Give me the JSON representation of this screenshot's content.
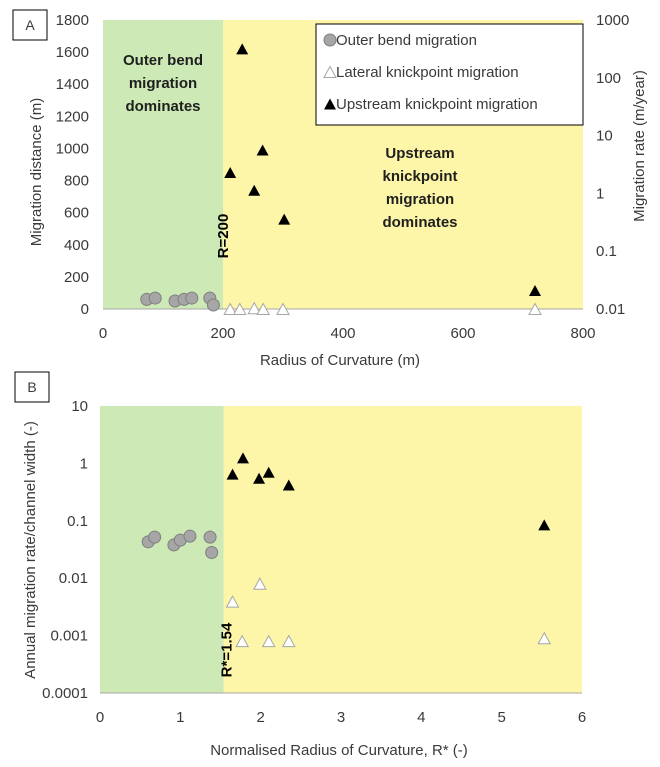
{
  "colors": {
    "outer_zone": "#cde9b6",
    "upstream_zone": "#fdf6a8",
    "outer_marker_fill": "#a6a6a6",
    "outer_marker_stroke": "#7f7f7f",
    "lateral_marker_stroke": "#a6a6a6",
    "upstream_marker": "#000000"
  },
  "chart_data": [
    {
      "panel": "A",
      "type": "scatter",
      "xlabel": "Radius of Curvature (m)",
      "ylabel": "Migration distance (m)",
      "ylabel_right": "Migration rate (m/year)",
      "xlim": [
        0,
        800
      ],
      "ylim": [
        0,
        1800
      ],
      "ylim_right": [
        0.01,
        1000
      ],
      "y_right_scale": "log",
      "x_ticks": [
        "0",
        "200",
        "400",
        "600",
        "800"
      ],
      "y_ticks": [
        "0",
        "200",
        "400",
        "600",
        "800",
        "1000",
        "1200",
        "1400",
        "1600",
        "1800"
      ],
      "y_right_ticks": [
        "0.01",
        "0.1",
        "1",
        "10",
        "100",
        "1000"
      ],
      "zones": [
        {
          "label": "Outer bend migration dominates",
          "lines": [
            "Outer bend",
            "migration",
            "dominates"
          ],
          "x_range": [
            0,
            200
          ],
          "color": "outer_zone"
        },
        {
          "label": "Upstream knickpoint migration dominates",
          "lines": [
            "Upstream",
            "knickpoint",
            "migration",
            "dominates"
          ],
          "x_range": [
            200,
            800
          ],
          "color": "upstream_zone"
        }
      ],
      "threshold_label": "R=200",
      "legend": {
        "position": "top-right",
        "entries": [
          "Outer bend migration",
          "Lateral knickpoint migration",
          "Upstream knickpoint migration"
        ]
      },
      "series": [
        {
          "name": "Outer bend migration",
          "marker": "circle",
          "x": [
            73,
            87,
            120,
            135,
            148,
            178,
            184
          ],
          "y": [
            60,
            68,
            50,
            60,
            68,
            68,
            25
          ]
        },
        {
          "name": "Lateral knickpoint migration",
          "marker": "open-triangle",
          "x": [
            212,
            228,
            252,
            267,
            300,
            720
          ],
          "y": [
            0,
            0,
            5,
            0,
            0,
            0
          ]
        },
        {
          "name": "Upstream knickpoint migration",
          "marker": "filled-triangle",
          "x": [
            212,
            232,
            252,
            266,
            302,
            720
          ],
          "y": [
            850,
            1620,
            740,
            990,
            560,
            115
          ]
        }
      ]
    },
    {
      "panel": "B",
      "type": "scatter",
      "xlabel": "Normalised Radius of Curvature, R* (-)",
      "ylabel": "Annual migration rate/channel width (-)",
      "xlim": [
        0,
        6
      ],
      "ylim": [
        0.0001,
        10
      ],
      "y_scale": "log",
      "x_ticks": [
        "0",
        "1",
        "2",
        "3",
        "4",
        "5",
        "6"
      ],
      "y_ticks": [
        "0.0001",
        "0.001",
        "0.01",
        "0.1",
        "1",
        "10"
      ],
      "zones": [
        {
          "x_range": [
            0,
            1.54
          ],
          "color": "outer_zone"
        },
        {
          "x_range": [
            1.54,
            6
          ],
          "color": "upstream_zone"
        }
      ],
      "threshold_label": "R*=1.54",
      "series": [
        {
          "name": "Outer bend migration",
          "marker": "circle",
          "x": [
            0.6,
            0.68,
            0.92,
            1.0,
            1.12,
            1.37,
            1.39
          ],
          "y": [
            0.043,
            0.052,
            0.038,
            0.046,
            0.054,
            0.052,
            0.028
          ]
        },
        {
          "name": "Lateral knickpoint migration",
          "marker": "open-triangle",
          "x": [
            1.65,
            1.77,
            1.99,
            2.1,
            2.35,
            5.53
          ],
          "y": [
            0.0039,
            0.0008,
            0.008,
            0.0008,
            0.0008,
            0.0009
          ]
        },
        {
          "name": "Upstream knickpoint migration",
          "marker": "filled-triangle",
          "x": [
            1.65,
            1.78,
            1.98,
            2.1,
            2.35,
            5.53
          ],
          "y": [
            0.65,
            1.25,
            0.55,
            0.7,
            0.42,
            0.085
          ]
        }
      ]
    }
  ]
}
